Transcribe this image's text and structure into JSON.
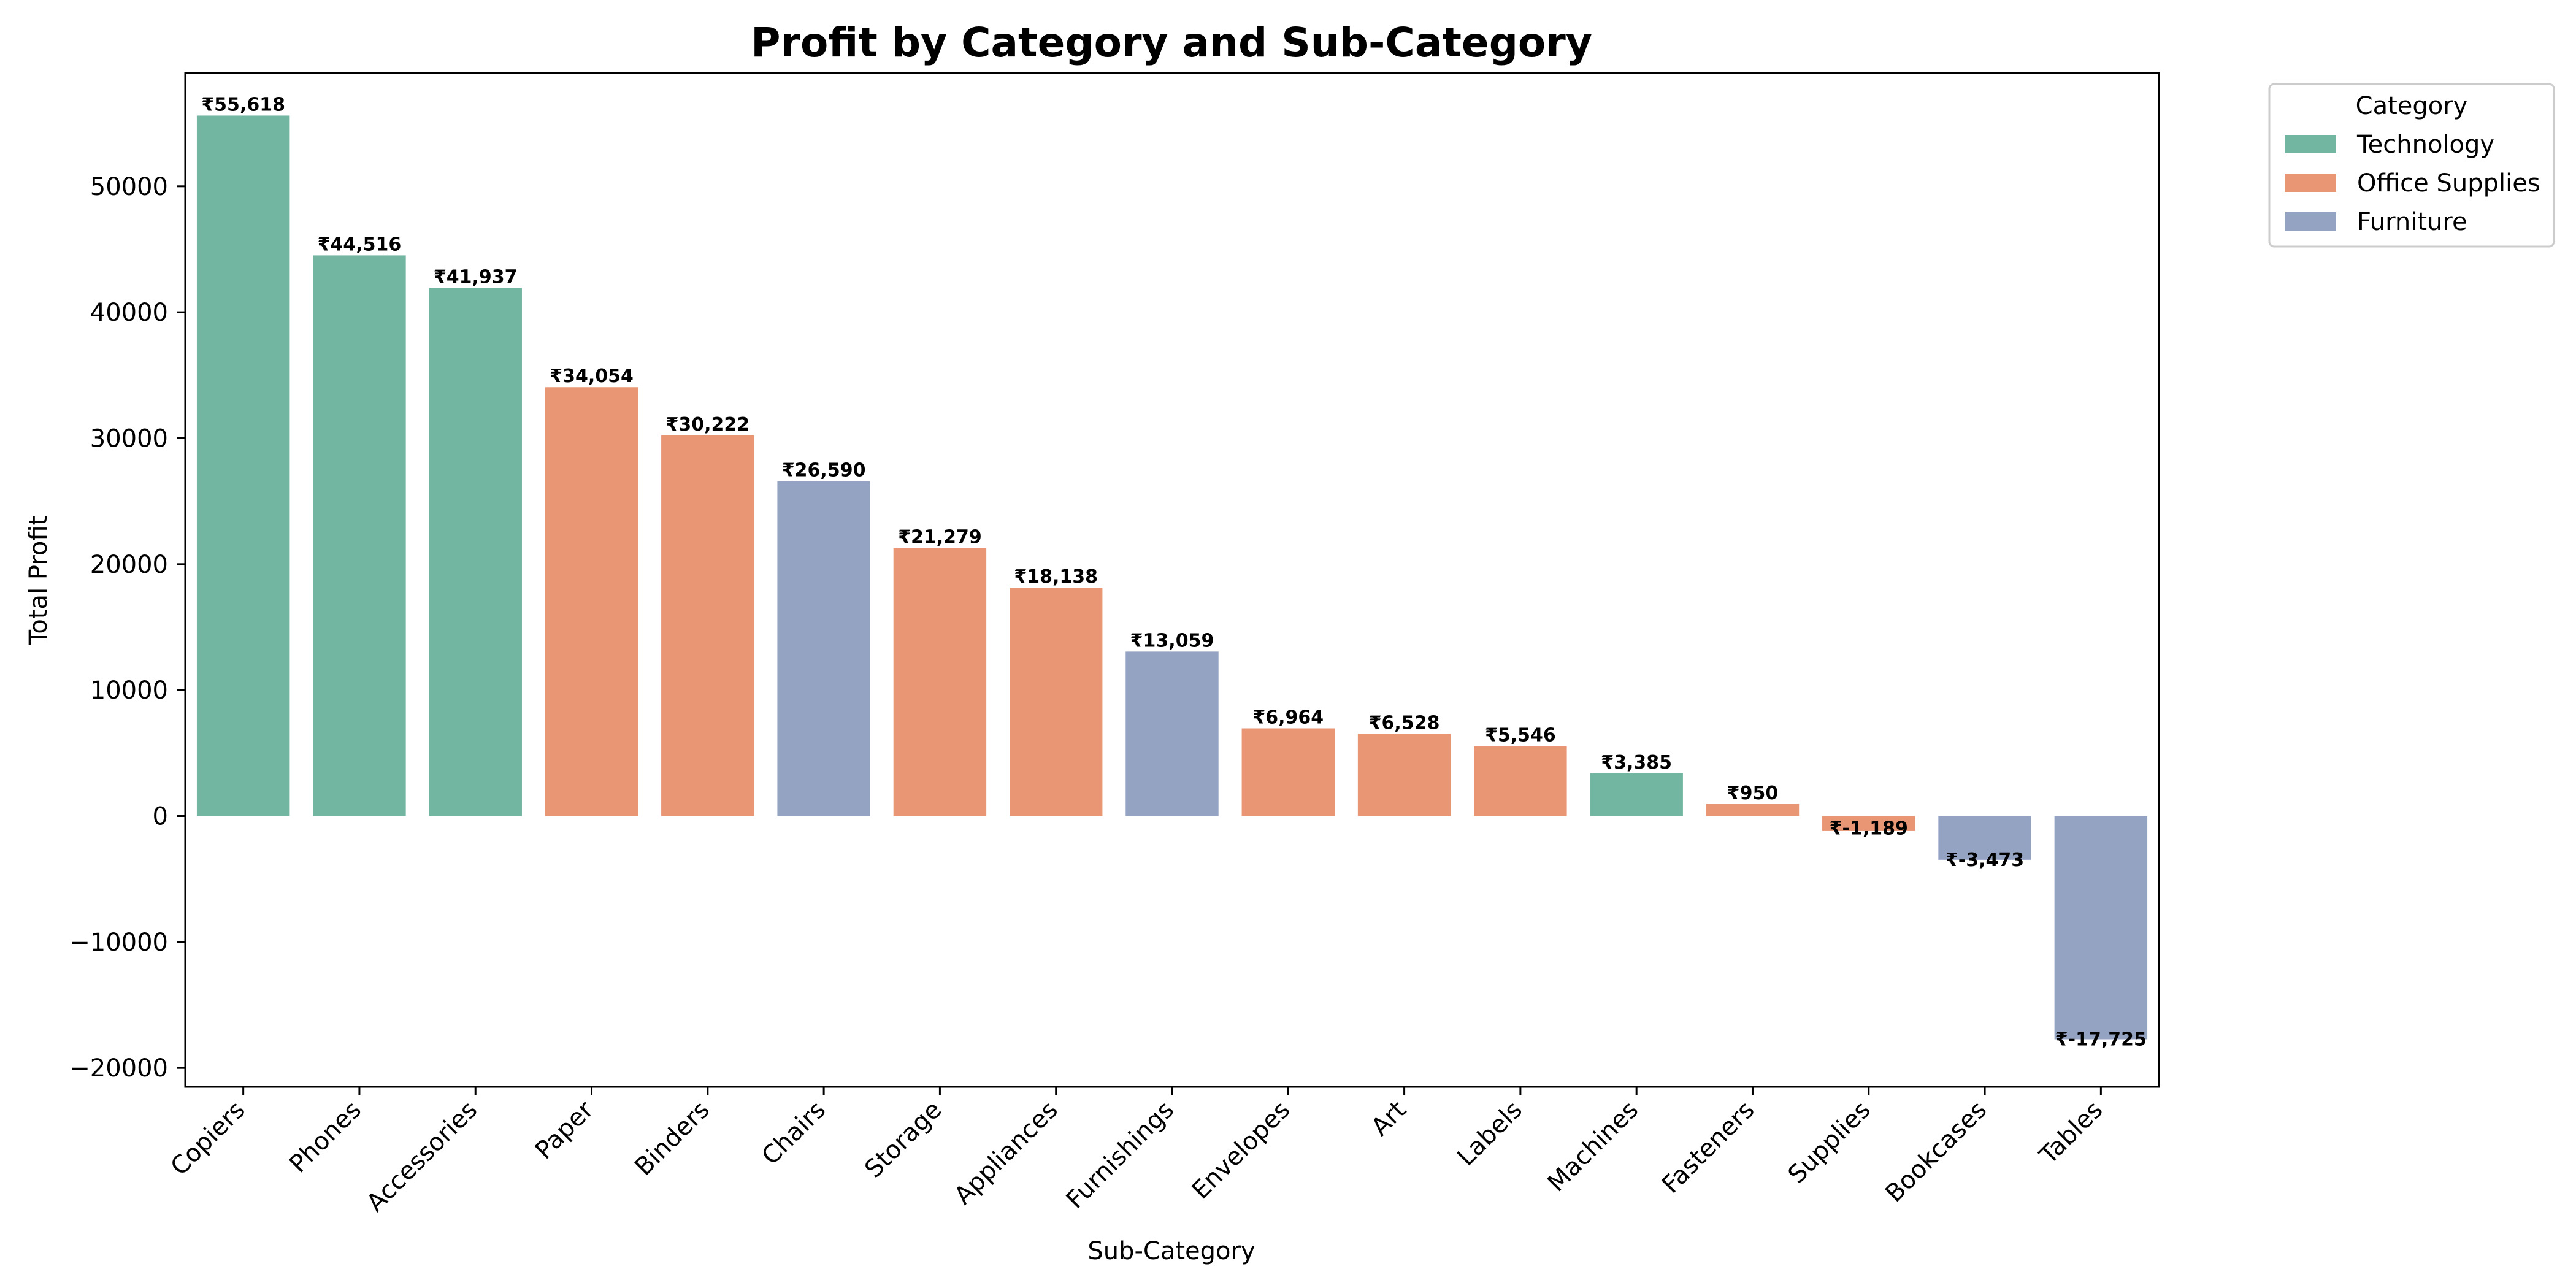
{
  "chart_data": {
    "type": "bar",
    "title": "Profit by Category and Sub-Category",
    "xlabel": "Sub-Category",
    "ylabel": "Total Profit",
    "ylim": [
      -21500,
      59000
    ],
    "yticks": [
      -20000,
      -10000,
      0,
      10000,
      20000,
      30000,
      40000,
      50000
    ],
    "ytick_labels": [
      "−20000",
      "−10000",
      "0",
      "10000",
      "20000",
      "30000",
      "40000",
      "50000"
    ],
    "grid": false,
    "legend": {
      "title": "Category",
      "placement": "outside-top-right",
      "entries": [
        {
          "name": "Technology",
          "color": "#72b6a1"
        },
        {
          "name": "Office Supplies",
          "color": "#e99675"
        },
        {
          "name": "Furniture",
          "color": "#95a3c3"
        }
      ]
    },
    "categories": [
      "Copiers",
      "Phones",
      "Accessories",
      "Paper",
      "Binders",
      "Chairs",
      "Storage",
      "Appliances",
      "Furnishings",
      "Envelopes",
      "Art",
      "Labels",
      "Machines",
      "Fasteners",
      "Supplies",
      "Bookcases",
      "Tables"
    ],
    "values": [
      55618,
      44516,
      41937,
      34054,
      30222,
      26590,
      21279,
      18138,
      13059,
      6964,
      6528,
      5546,
      3385,
      950,
      -1189,
      -3473,
      -17725
    ],
    "value_labels": [
      "₹55,618",
      "₹44,516",
      "₹41,937",
      "₹34,054",
      "₹30,222",
      "₹26,590",
      "₹21,279",
      "₹18,138",
      "₹13,059",
      "₹6,964",
      "₹6,528",
      "₹5,546",
      "₹3,385",
      "₹950",
      "₹-1,189",
      "₹-3,473",
      "₹-17,725"
    ],
    "bar_category": [
      "Technology",
      "Technology",
      "Technology",
      "Office Supplies",
      "Office Supplies",
      "Furniture",
      "Office Supplies",
      "Office Supplies",
      "Furniture",
      "Office Supplies",
      "Office Supplies",
      "Office Supplies",
      "Technology",
      "Office Supplies",
      "Office Supplies",
      "Furniture",
      "Furniture"
    ]
  }
}
